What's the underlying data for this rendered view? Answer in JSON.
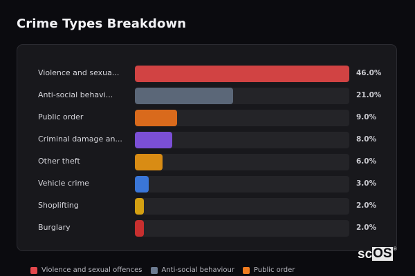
{
  "header": {
    "title": "Crime Types Breakdown"
  },
  "chart_data": {
    "type": "bar",
    "orientation": "horizontal",
    "title": "Crime Types Breakdown",
    "categories": [
      "Violence and sexual offences",
      "Anti-social behaviour",
      "Public order",
      "Criminal damage and arson",
      "Other theft",
      "Vehicle crime",
      "Shoplifting",
      "Burglary"
    ],
    "display_labels": [
      "Violence and sexua...",
      "Anti-social behavi...",
      "Public order",
      "Criminal damage an...",
      "Other theft",
      "Vehicle crime",
      "Shoplifting",
      "Burglary"
    ],
    "values": [
      46.0,
      21.0,
      9.0,
      8.0,
      6.0,
      3.0,
      2.0,
      2.0
    ],
    "value_labels": [
      "46.0%",
      "21.0%",
      "9.0%",
      "8.0%",
      "6.0%",
      "3.0%",
      "2.0%",
      "2.0%"
    ],
    "colors": [
      "#d14343",
      "#5b6778",
      "#d96a1c",
      "#7b4fd6",
      "#d98c14",
      "#3a76d8",
      "#d4a012",
      "#c72f2f"
    ],
    "xlabel": "",
    "ylabel": "",
    "xlim": [
      0,
      46
    ],
    "grid": false,
    "legend_position": "bottom"
  },
  "rows": [
    {
      "label": "Violence and sexua...",
      "pct": "46.0%",
      "value": 46.0,
      "color": "#d14343"
    },
    {
      "label": "Anti-social behavi...",
      "pct": "21.0%",
      "value": 21.0,
      "color": "#5b6778"
    },
    {
      "label": "Public order",
      "pct": "9.0%",
      "value": 9.0,
      "color": "#d96a1c"
    },
    {
      "label": "Criminal damage an...",
      "pct": "8.0%",
      "value": 8.0,
      "color": "#7b4fd6"
    },
    {
      "label": "Other theft",
      "pct": "6.0%",
      "value": 6.0,
      "color": "#d98c14"
    },
    {
      "label": "Vehicle crime",
      "pct": "3.0%",
      "value": 3.0,
      "color": "#3a76d8"
    },
    {
      "label": "Shoplifting",
      "pct": "2.0%",
      "value": 2.0,
      "color": "#d4a012"
    },
    {
      "label": "Burglary",
      "pct": "2.0%",
      "value": 2.0,
      "color": "#c72f2f"
    }
  ],
  "legend": [
    {
      "label": "Violence and sexual offences",
      "color": "#e5484d"
    },
    {
      "label": "Anti-social behaviour",
      "color": "#6b7a90"
    },
    {
      "label": "Public order",
      "color": "#f07c1f"
    }
  ],
  "watermark": {
    "prefix": "sc",
    "boxed": "OS",
    "mark": "®"
  }
}
